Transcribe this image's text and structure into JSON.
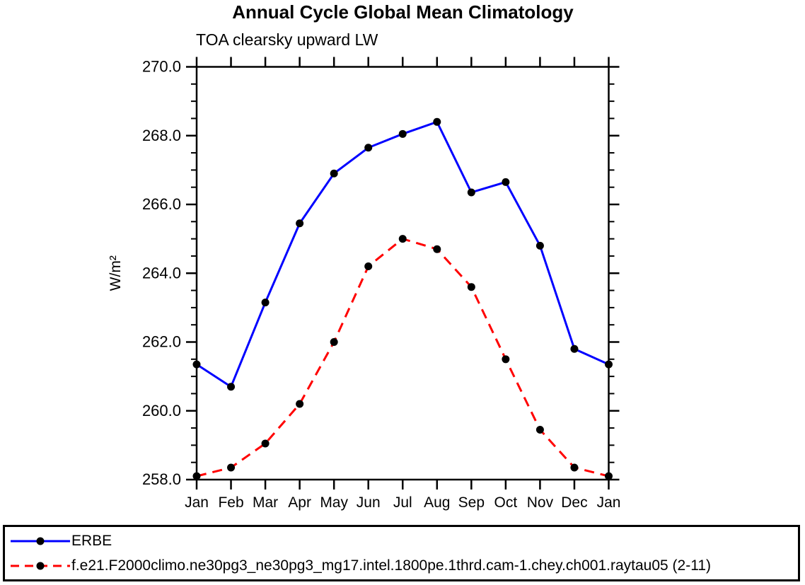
{
  "title": "Annual Cycle Global Mean Climatology",
  "subtitle": "TOA clearsky upward LW",
  "y_axis_label": "W/m²",
  "chart_data": {
    "type": "line",
    "title": "Annual Cycle Global Mean Climatology",
    "subtitle": "TOA clearsky upward LW",
    "xlabel": "",
    "ylabel": "W/m²",
    "categories": [
      "Jan",
      "Feb",
      "Mar",
      "Apr",
      "May",
      "Jun",
      "Jul",
      "Aug",
      "Sep",
      "Oct",
      "Nov",
      "Dec",
      "Jan"
    ],
    "series": [
      {
        "name": "ERBE",
        "color": "#0000ff",
        "line_style": "solid",
        "line_width": 3,
        "marker": "filled-circle",
        "marker_color": "#000000",
        "values": [
          261.35,
          260.7,
          263.15,
          265.45,
          266.9,
          267.65,
          268.05,
          268.4,
          266.35,
          266.65,
          264.8,
          261.8,
          261.35
        ]
      },
      {
        "name": "f.e21.F2000climo.ne30pg3_ne30pg3_mg17.intel.1800pe.1thrd.cam-1.chey.ch001.raytau05 (2-11)",
        "color": "#ff0000",
        "line_style": "dashed",
        "line_width": 3,
        "marker": "filled-circle",
        "marker_color": "#000000",
        "values": [
          258.1,
          258.35,
          259.05,
          260.2,
          262.0,
          264.2,
          265.0,
          264.7,
          263.6,
          261.5,
          259.45,
          258.35,
          258.1
        ]
      }
    ],
    "ylim": [
      258.0,
      270.0
    ],
    "ytick_major_interval": 2.0,
    "ytick_minor_interval": 0.5,
    "ytick_labels": [
      "258.0",
      "260.0",
      "262.0",
      "264.0",
      "266.0",
      "268.0",
      "270.0"
    ],
    "ytick_values": [
      258.0,
      260.0,
      262.0,
      264.0,
      266.0,
      268.0,
      270.0
    ],
    "grid": false,
    "frame": "box-with-outward-ticks",
    "legend_position": "bottom-boxed"
  },
  "legend": {
    "entries": [
      {
        "label": "ERBE",
        "color": "#0000ff",
        "line_style": "solid",
        "marker": "filled-circle"
      },
      {
        "label": "f.e21.F2000climo.ne30pg3_ne30pg3_mg17.intel.1800pe.1thrd.cam-1.chey.ch001.raytau05 (2-11)",
        "color": "#ff0000",
        "line_style": "dashed",
        "marker": "filled-circle"
      }
    ]
  },
  "colors": {
    "axis": "#000000",
    "marker": "#000000",
    "erbe_line": "#0000ff",
    "model_line": "#ff0000",
    "background": "#ffffff"
  }
}
